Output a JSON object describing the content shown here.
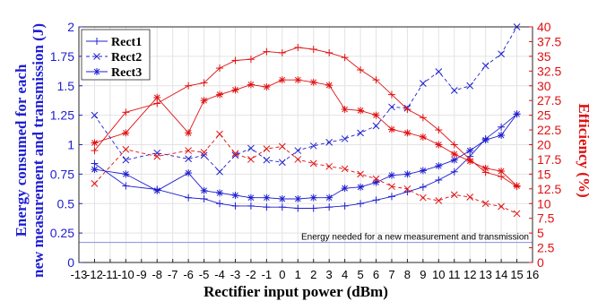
{
  "chart_data": {
    "type": "line",
    "xlabel": "Rectifier input power (dBm)",
    "ylabel_left": "Energy consumed for each new measurement and transmission (J)",
    "ylabel_right": "Efficiency (%)",
    "x_ticks": [
      "-13",
      "-12",
      "-11",
      "-10",
      "-9",
      "-8",
      "-7",
      "-6",
      "-5",
      "-4",
      "-3",
      "-2",
      "-1",
      "0",
      "1",
      "2",
      "3",
      "4",
      "5",
      "6",
      "7",
      "8",
      "9",
      "10",
      "11",
      "12",
      "13",
      "14",
      "15",
      "16"
    ],
    "y_left_ticks": [
      "0",
      "0.25",
      "0.5",
      "0.75",
      "1",
      "1.25",
      "1.5",
      "1.75",
      "2"
    ],
    "y_right_ticks": [
      "0",
      "2.5",
      "5",
      "7.5",
      "10",
      "12.5",
      "15",
      "17.5",
      "20",
      "22.5",
      "25",
      "27.5",
      "30",
      "32.5",
      "35",
      "37.5",
      "40"
    ],
    "xlim": [
      -13,
      16
    ],
    "ylim_left": [
      0,
      2
    ],
    "ylim_right": [
      0,
      40
    ],
    "grid": true,
    "legend_position": "top-left",
    "threshold": {
      "value": 0.17,
      "label": "Energy needed for a new measurement and transmission"
    },
    "colors": {
      "left": "#1f1fd0",
      "right": "#e01010",
      "threshold": "#8a8ae6"
    },
    "energy_series": [
      {
        "name": "Rect1",
        "marker": "plus",
        "dash": "solid",
        "x": [
          -12,
          -10,
          -8,
          -6,
          -5,
          -4,
          -3,
          -2,
          -1,
          0,
          1,
          2,
          3,
          4,
          5,
          6,
          7,
          8,
          9,
          10,
          11,
          12,
          13,
          14,
          15
        ],
        "y": [
          0.84,
          0.65,
          0.62,
          0.55,
          0.54,
          0.5,
          0.48,
          0.48,
          0.47,
          0.47,
          0.46,
          0.46,
          0.47,
          0.48,
          0.5,
          0.53,
          0.56,
          0.6,
          0.64,
          0.7,
          0.77,
          0.9,
          1.05,
          1.15,
          1.26
        ]
      },
      {
        "name": "Rect2",
        "marker": "x",
        "dash": "dashed",
        "x": [
          -12,
          -10,
          -8,
          -6,
          -5,
          -4,
          -3,
          -2,
          -1,
          0,
          1,
          2,
          3,
          4,
          5,
          6,
          7,
          8,
          9,
          10,
          11,
          12,
          13,
          14,
          15
        ],
        "y": [
          1.25,
          0.87,
          0.93,
          0.88,
          0.91,
          0.77,
          0.91,
          0.97,
          0.87,
          0.85,
          0.95,
          0.99,
          1.02,
          1.05,
          1.1,
          1.16,
          1.32,
          1.31,
          1.52,
          1.62,
          1.46,
          1.5,
          1.67,
          1.77,
          2.0
        ]
      },
      {
        "name": "Rect3",
        "marker": "star",
        "dash": "solid",
        "x": [
          -12,
          -10,
          -8,
          -6,
          -5,
          -4,
          -3,
          -2,
          -1,
          0,
          1,
          2,
          3,
          4,
          5,
          6,
          7,
          8,
          9,
          10,
          11,
          12,
          13,
          14,
          15
        ],
        "y": [
          0.79,
          0.75,
          0.61,
          0.76,
          0.61,
          0.59,
          0.57,
          0.55,
          0.55,
          0.54,
          0.54,
          0.55,
          0.55,
          0.63,
          0.64,
          0.68,
          0.74,
          0.75,
          0.78,
          0.82,
          0.87,
          0.95,
          1.04,
          1.08,
          1.26
        ]
      }
    ],
    "efficiency_series": [
      {
        "name": "Rect1",
        "marker": "plus",
        "dash": "solid",
        "x": [
          -12,
          -10,
          -8,
          -6,
          -5,
          -4,
          -3,
          -2,
          -1,
          0,
          1,
          2,
          3,
          4,
          5,
          6,
          7,
          8,
          9,
          10,
          11,
          12,
          13,
          14,
          15
        ],
        "y": [
          19.0,
          25.5,
          27.0,
          30.0,
          30.5,
          33.0,
          34.3,
          34.5,
          35.8,
          35.6,
          36.5,
          36.2,
          35.6,
          34.8,
          32.7,
          31.0,
          28.5,
          26.0,
          24.6,
          22.5,
          20.0,
          17.5,
          15.3,
          14.6,
          12.9
        ]
      },
      {
        "name": "Rect2",
        "marker": "x",
        "dash": "dashed",
        "x": [
          -12,
          -10,
          -8,
          -6,
          -5,
          -4,
          -3,
          -2,
          -1,
          0,
          1,
          2,
          3,
          4,
          5,
          6,
          7,
          8,
          9,
          10,
          11,
          12,
          13,
          14,
          15
        ],
        "y": [
          13.4,
          19.2,
          18.0,
          19.0,
          18.7,
          21.8,
          18.5,
          17.5,
          19.3,
          19.7,
          17.5,
          16.8,
          16.3,
          15.9,
          15.0,
          14.2,
          12.9,
          12.5,
          11.0,
          10.5,
          11.5,
          11.1,
          10.0,
          9.5,
          8.3
        ]
      },
      {
        "name": "Rect3",
        "marker": "star",
        "dash": "solid",
        "x": [
          -12,
          -10,
          -8,
          -6,
          -5,
          -4,
          -3,
          -2,
          -1,
          0,
          1,
          2,
          3,
          4,
          5,
          6,
          7,
          8,
          9,
          10,
          11,
          12,
          13,
          14,
          15
        ],
        "y": [
          20.3,
          22.0,
          28.0,
          22.0,
          27.5,
          28.5,
          29.3,
          30.2,
          29.8,
          31.0,
          31.0,
          30.6,
          30.1,
          26.0,
          25.8,
          25.0,
          22.6,
          22.0,
          21.3,
          20.0,
          18.4,
          17.2,
          16.0,
          15.5,
          13.0
        ]
      }
    ]
  }
}
